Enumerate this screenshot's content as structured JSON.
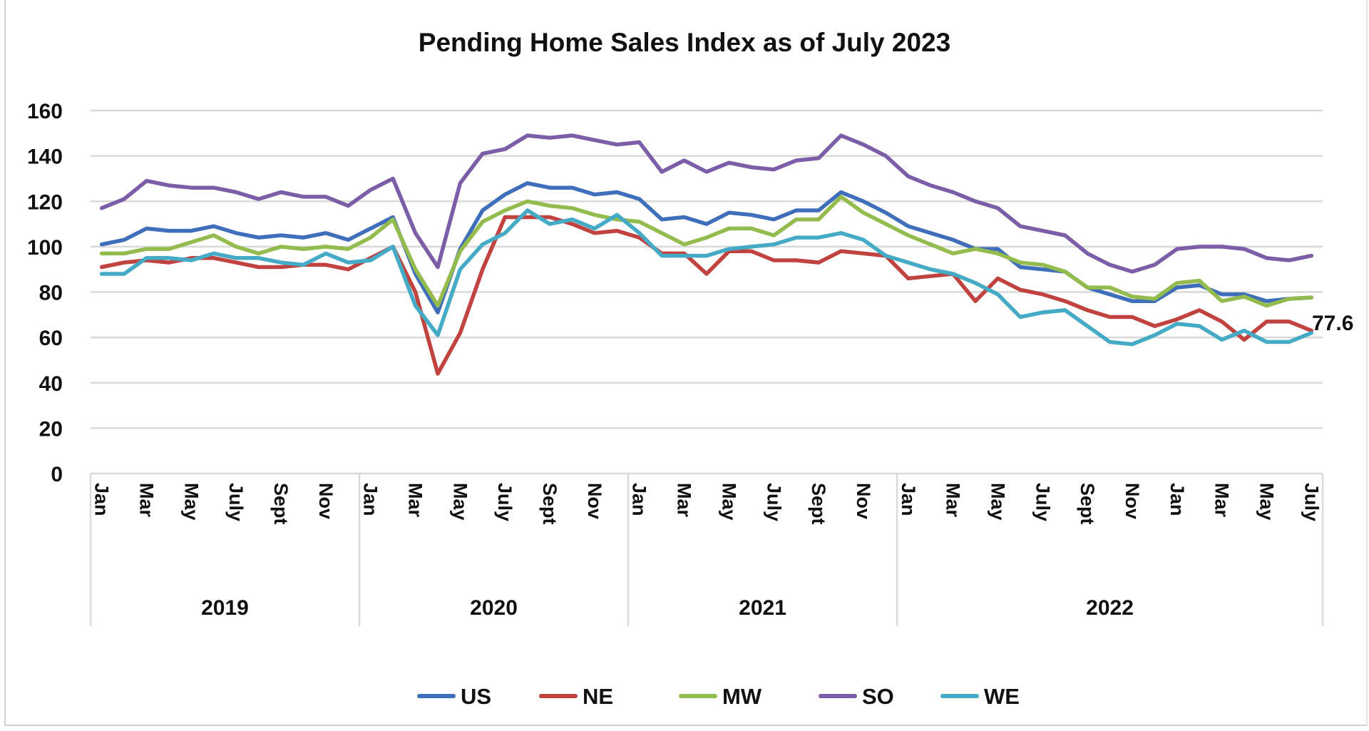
{
  "chart_data": {
    "type": "line",
    "title": "Pending Home Sales Index as of July 2023",
    "xlabel": "",
    "ylabel": "",
    "ylim": [
      0,
      160
    ],
    "yticks": [
      0,
      20,
      40,
      60,
      80,
      100,
      120,
      140,
      160
    ],
    "grid": true,
    "legend_position": "bottom",
    "month_labels": [
      "Jan",
      "",
      "Mar",
      "",
      "May",
      "",
      "July",
      "",
      "Sept",
      "",
      "Nov",
      "",
      "Jan",
      "",
      "Mar",
      "",
      "May",
      "",
      "July",
      "",
      "Sept",
      "",
      "Nov",
      "",
      "Jan",
      "",
      "Mar",
      "",
      "May",
      "",
      "July",
      "",
      "Sept",
      "",
      "Nov",
      "",
      "Jan",
      "",
      "Mar",
      "",
      "May",
      "",
      "July",
      "",
      "Sept",
      "",
      "Nov",
      "",
      "Jan",
      "",
      "Mar",
      "",
      "May",
      "",
      "July"
    ],
    "year_groups": [
      {
        "label": "2019",
        "months": 12
      },
      {
        "label": "2020",
        "months": 12
      },
      {
        "label": "2021",
        "months": 12
      },
      {
        "label": "2022",
        "months": 19
      }
    ],
    "series": [
      {
        "name": "US",
        "color": "#3f6fba",
        "values": [
          101,
          103,
          108,
          107,
          107,
          109,
          106,
          104,
          105,
          104,
          106,
          103,
          108,
          113,
          88,
          71,
          99,
          116,
          123,
          128,
          126,
          126,
          123,
          124,
          121,
          112,
          113,
          110,
          115,
          114,
          112,
          116,
          116,
          124,
          120,
          115,
          109,
          106,
          103,
          99,
          99,
          91,
          90,
          89,
          82,
          79,
          76,
          76,
          82,
          83,
          79,
          79,
          76,
          77,
          77.6
        ]
      },
      {
        "name": "NE",
        "color": "#c0433f",
        "values": [
          91,
          93,
          94,
          93,
          95,
          95,
          93,
          91,
          91,
          92,
          92,
          90,
          95,
          100,
          80,
          44,
          62,
          90,
          113,
          113,
          113,
          110,
          106,
          107,
          104,
          97,
          97,
          88,
          98,
          98,
          94,
          94,
          93,
          98,
          97,
          96,
          86,
          87,
          88,
          76,
          86,
          81,
          79,
          76,
          72,
          69,
          69,
          65,
          68,
          72,
          67,
          59,
          67,
          67,
          63
        ]
      },
      {
        "name": "MW",
        "color": "#93bb4d",
        "values": [
          97,
          97,
          99,
          99,
          102,
          105,
          100,
          97,
          100,
          99,
          100,
          99,
          104,
          112,
          90,
          74,
          98,
          111,
          116,
          120,
          118,
          117,
          114,
          112,
          111,
          106,
          101,
          104,
          108,
          108,
          105,
          112,
          112,
          122,
          115,
          110,
          105,
          101,
          97,
          99,
          97,
          93,
          92,
          89,
          82,
          82,
          78,
          77,
          84,
          85,
          76,
          78,
          74,
          77,
          77.6
        ]
      },
      {
        "name": "SO",
        "color": "#7b5ea7",
        "values": [
          117,
          121,
          129,
          127,
          126,
          126,
          124,
          121,
          124,
          122,
          122,
          118,
          125,
          130,
          106,
          91,
          128,
          141,
          143,
          149,
          148,
          149,
          147,
          145,
          146,
          133,
          138,
          133,
          137,
          135,
          134,
          138,
          139,
          149,
          145,
          140,
          131,
          127,
          124,
          120,
          117,
          109,
          107,
          105,
          97,
          92,
          89,
          92,
          99,
          100,
          100,
          99,
          95,
          94,
          96
        ]
      },
      {
        "name": "WE",
        "color": "#45aac6",
        "values": [
          88,
          88,
          95,
          95,
          94,
          97,
          95,
          95,
          93,
          92,
          97,
          93,
          94,
          100,
          74,
          61,
          90,
          101,
          106,
          116,
          110,
          112,
          108,
          114,
          106,
          96,
          96,
          96,
          99,
          100,
          101,
          104,
          104,
          106,
          103,
          96,
          93,
          90,
          88,
          84,
          79,
          69,
          71,
          72,
          65,
          58,
          57,
          61,
          66,
          65,
          59,
          63,
          58,
          58,
          62
        ]
      }
    ],
    "annotations": [
      {
        "text": "77.6",
        "series": "MW"
      }
    ]
  }
}
